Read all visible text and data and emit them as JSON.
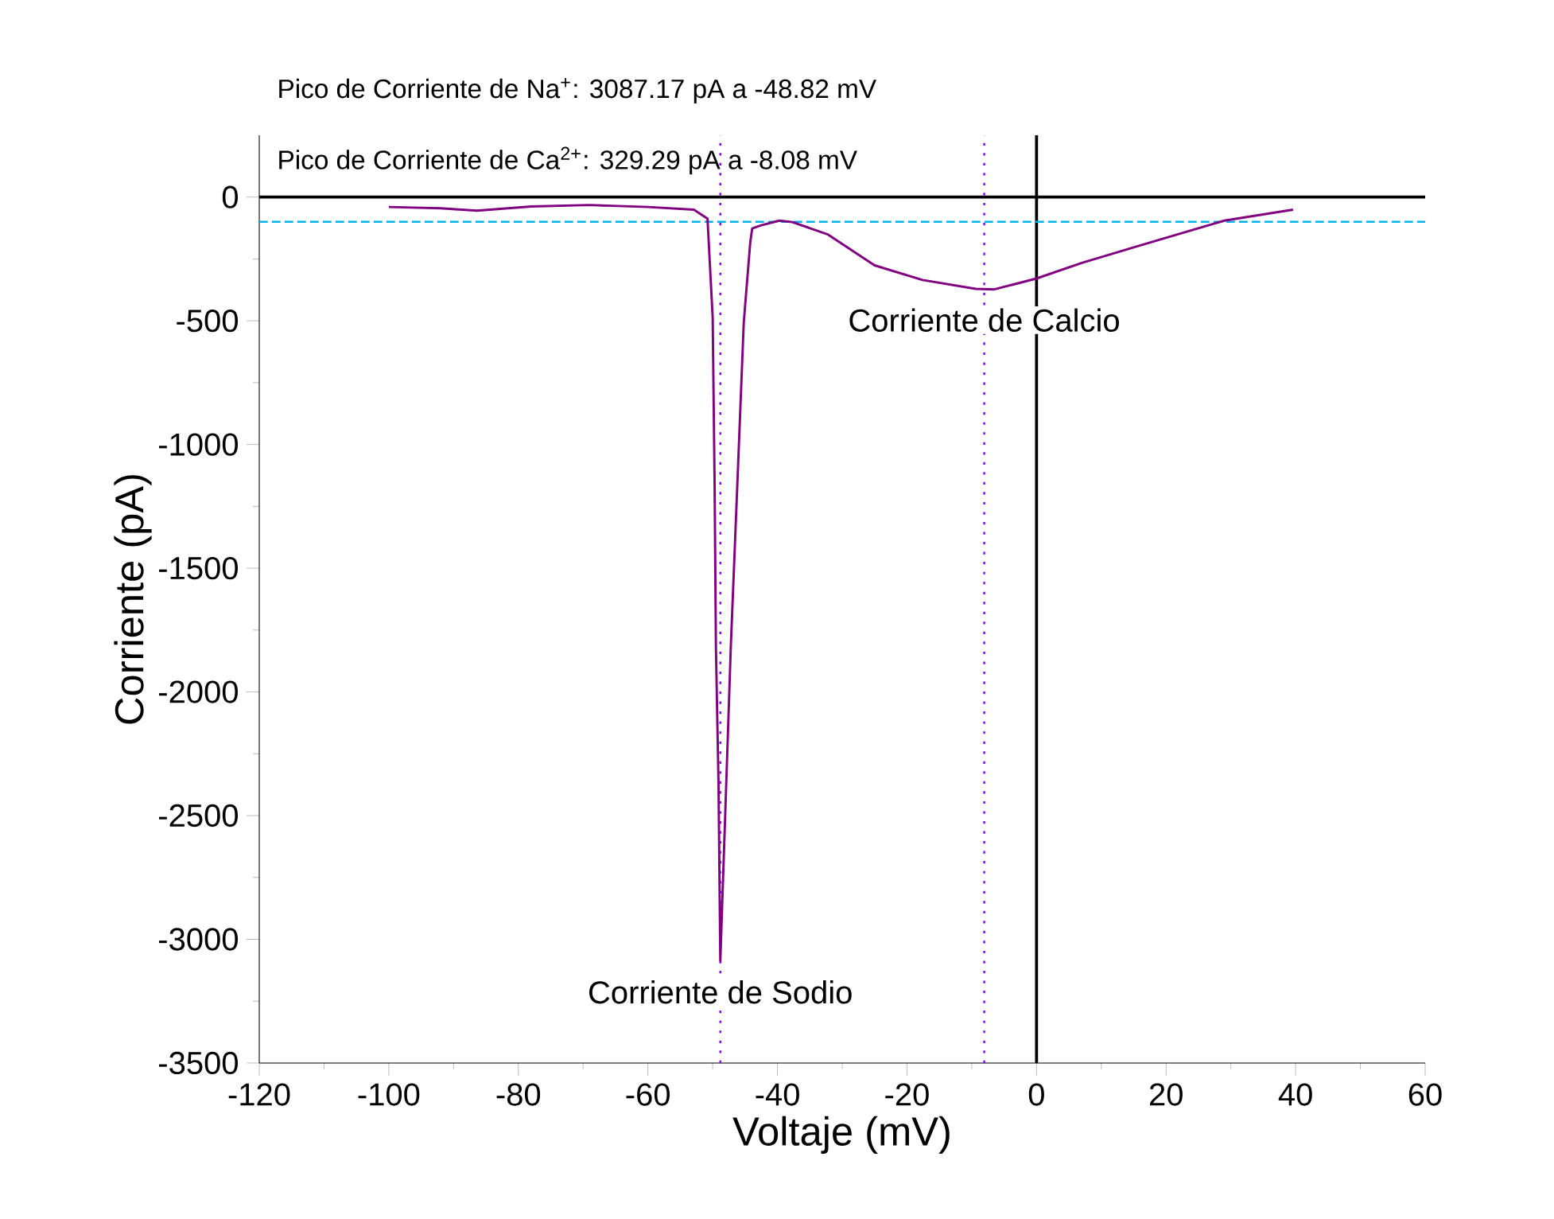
{
  "chart_data": {
    "type": "line",
    "xlabel": "Voltaje (mV)",
    "ylabel": "Corriente (pA)",
    "xlim": [
      -120,
      60
    ],
    "ylim": [
      -3500,
      250
    ],
    "xticks": [
      -120,
      -100,
      -80,
      -60,
      -40,
      -20,
      0,
      20,
      40,
      60
    ],
    "yticks": [
      -3500,
      -3000,
      -2500,
      -2000,
      -1500,
      -1000,
      -500,
      0
    ],
    "series": [
      {
        "color": "#800080",
        "x": [
          -100,
          -92,
          -86.4,
          -78,
          -69,
          -60,
          -52.9,
          -50.8,
          -50,
          -49.7,
          -49.5,
          -49.1,
          -48.82,
          -47.2,
          -46.2,
          -45.2,
          -44.2,
          -43.9,
          -42.5,
          -39.7,
          -37.7,
          -32.3,
          -25,
          -17.6,
          -9.4,
          -6.5,
          0,
          7,
          15,
          23.3,
          29,
          39.6
        ],
        "values": [
          -40,
          -45,
          -55,
          -38,
          -32,
          -40,
          -51,
          -87,
          -487,
          -1165,
          -1817,
          -2367,
          -3087,
          -1817,
          -1165,
          -506,
          -183,
          -127,
          -114,
          -95,
          -101,
          -150,
          -276,
          -335,
          -371,
          -373,
          -329,
          -266,
          -203,
          -139,
          -95,
          -51
        ]
      }
    ],
    "ref_lines": [
      {
        "axis": "y",
        "value": 0,
        "color": "#000000",
        "line_style": "solid"
      },
      {
        "axis": "x",
        "value": 0,
        "color": "#000000",
        "line_style": "solid"
      },
      {
        "axis": "y",
        "value": -100,
        "color": "#00b0f0",
        "line_style": "dashed"
      },
      {
        "axis": "x",
        "value": -48.82,
        "color": "#8000ff",
        "line_style": "dotted"
      },
      {
        "axis": "x",
        "value": -8.08,
        "color": "#8000ff",
        "line_style": "dotted"
      }
    ],
    "annotations": [
      "Pico de Corriente de Na$^{+}$: 3087.17 pA a -48.82 mV",
      "Pico de Corriente de Ca$^{2+}$: 329.29 pA a -8.08 mV",
      {
        "text": "Corriente de Sodio",
        "x": -48.82,
        "y": -3087
      },
      {
        "text": "Corriente de Calcio",
        "x": -8.08,
        "y": -371
      }
    ]
  }
}
